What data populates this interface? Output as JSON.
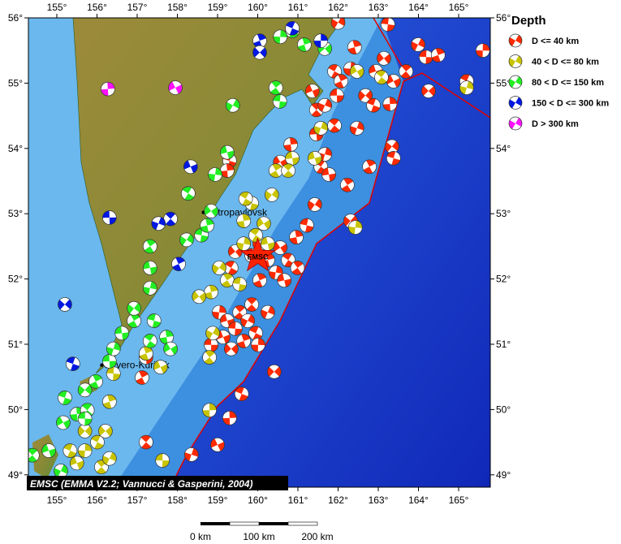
{
  "map": {
    "lon_range": [
      154.3,
      165.8
    ],
    "lat_range": [
      48.8,
      56.0
    ],
    "lon_ticks": [
      155,
      156,
      157,
      158,
      159,
      160,
      161,
      162,
      163,
      164,
      165
    ],
    "lat_ticks": [
      49,
      50,
      51,
      52,
      53,
      54,
      55,
      56
    ],
    "degree_symbol": "°",
    "cities": [
      {
        "name": "Petropavlovsk",
        "lon": 158.65,
        "lat": 53.02
      },
      {
        "name": "Severo-Kuril'sk",
        "lon": 156.12,
        "lat": 50.68
      }
    ],
    "epicenter": {
      "label": "EMSC",
      "lon": 160.0,
      "lat": 52.35,
      "color": "#ff2200"
    },
    "credit": "EMSC (EMMA V2.2; Vannucci & Gasperini, 2004)",
    "scale_bar": {
      "labels": [
        "0 km",
        "100 km",
        "200 km"
      ]
    },
    "plate_boundary_color": "#e00000"
  },
  "legend": {
    "title": "Depth",
    "items": [
      {
        "label": "D <= 40 km",
        "color": "#ff2a00"
      },
      {
        "label": "40 < D <= 80 km",
        "color": "#c8c400"
      },
      {
        "label": "80 < D <= 150 km",
        "color": "#22ee22"
      },
      {
        "label": "150 < D <= 300 km",
        "color": "#0018e0"
      },
      {
        "label": "D > 300 km",
        "color": "#ff10ff"
      }
    ]
  },
  "events": [
    [
      162.0,
      55.93,
      0
    ],
    [
      163.24,
      55.9,
      0
    ],
    [
      162.41,
      55.55,
      0
    ],
    [
      163.14,
      55.38,
      0
    ],
    [
      161.91,
      55.18,
      0
    ],
    [
      162.31,
      55.22,
      0
    ],
    [
      162.94,
      55.18,
      0
    ],
    [
      163.69,
      55.18,
      0
    ],
    [
      163.99,
      55.59,
      0
    ],
    [
      164.19,
      55.4,
      0
    ],
    [
      164.49,
      55.43,
      0
    ],
    [
      164.25,
      54.88,
      0
    ],
    [
      165.2,
      55.03,
      0
    ],
    [
      165.6,
      55.5,
      0
    ],
    [
      161.36,
      54.88,
      0
    ],
    [
      161.46,
      54.59,
      0
    ],
    [
      161.67,
      54.66,
      0
    ],
    [
      161.97,
      54.81,
      0
    ],
    [
      162.07,
      55.03,
      0
    ],
    [
      162.68,
      54.81,
      0
    ],
    [
      162.88,
      54.66,
      0
    ],
    [
      163.29,
      54.68,
      0
    ],
    [
      163.38,
      55.03,
      0
    ],
    [
      161.91,
      54.35,
      0
    ],
    [
      162.47,
      54.31,
      0
    ],
    [
      161.46,
      54.22,
      0
    ],
    [
      162.78,
      53.72,
      0
    ],
    [
      163.34,
      54.03,
      0
    ],
    [
      163.38,
      53.85,
      0
    ],
    [
      160.82,
      54.06,
      0
    ],
    [
      160.56,
      53.79,
      0
    ],
    [
      161.57,
      53.72,
      0
    ],
    [
      161.67,
      53.91,
      0
    ],
    [
      161.77,
      53.6,
      0
    ],
    [
      162.23,
      53.44,
      0
    ],
    [
      161.42,
      53.14,
      0
    ],
    [
      161.22,
      52.82,
      0
    ],
    [
      160.96,
      52.64,
      0
    ],
    [
      160.56,
      52.48,
      0
    ],
    [
      160.76,
      52.29,
      0
    ],
    [
      160.45,
      52.1,
      0
    ],
    [
      160.66,
      51.98,
      0
    ],
    [
      160.99,
      52.17,
      0
    ],
    [
      160.05,
      52.54,
      0
    ],
    [
      159.85,
      52.36,
      0
    ],
    [
      160.25,
      52.29,
      0
    ],
    [
      159.44,
      52.42,
      0
    ],
    [
      159.34,
      52.17,
      0
    ],
    [
      159.04,
      51.49,
      0
    ],
    [
      159.24,
      51.36,
      0
    ],
    [
      159.55,
      51.49,
      0
    ],
    [
      159.75,
      51.36,
      0
    ],
    [
      159.44,
      51.24,
      0
    ],
    [
      159.65,
      51.05,
      0
    ],
    [
      159.34,
      50.93,
      0
    ],
    [
      159.95,
      51.17,
      0
    ],
    [
      160.01,
      50.99,
      0
    ],
    [
      159.14,
      51.11,
      0
    ],
    [
      159.85,
      51.61,
      0
    ],
    [
      160.25,
      51.49,
      0
    ],
    [
      158.84,
      50.99,
      0
    ],
    [
      160.05,
      51.98,
      0
    ],
    [
      160.41,
      50.58,
      0
    ],
    [
      159.6,
      50.24,
      0
    ],
    [
      159.3,
      49.87,
      0
    ],
    [
      159.0,
      49.46,
      0
    ],
    [
      157.22,
      49.5,
      0
    ],
    [
      158.35,
      49.31,
      0
    ],
    [
      157.22,
      50.8,
      0
    ],
    [
      157.12,
      50.49,
      0
    ],
    [
      162.31,
      52.89,
      0
    ],
    [
      159.3,
      53.81,
      0
    ],
    [
      159.24,
      53.66,
      0
    ],
    [
      162.47,
      55.18,
      1
    ],
    [
      163.08,
      55.09,
      1
    ],
    [
      165.2,
      54.93,
      1
    ],
    [
      160.86,
      53.85,
      1
    ],
    [
      160.45,
      53.66,
      1
    ],
    [
      160.35,
      53.29,
      1
    ],
    [
      159.85,
      53.16,
      1
    ],
    [
      159.65,
      52.89,
      1
    ],
    [
      160.15,
      52.85,
      1
    ],
    [
      159.95,
      52.67,
      1
    ],
    [
      159.65,
      52.54,
      1
    ],
    [
      160.25,
      52.54,
      1
    ],
    [
      159.24,
      51.98,
      1
    ],
    [
      159.04,
      52.17,
      1
    ],
    [
      159.55,
      51.92,
      1
    ],
    [
      158.84,
      51.8,
      1
    ],
    [
      158.54,
      51.73,
      1
    ],
    [
      159.7,
      53.23,
      1
    ],
    [
      162.43,
      52.79,
      1
    ],
    [
      161.42,
      53.85,
      1
    ],
    [
      158.8,
      50.8,
      1
    ],
    [
      158.88,
      51.17,
      1
    ],
    [
      156.41,
      50.55,
      1
    ],
    [
      156.31,
      50.12,
      1
    ],
    [
      156.21,
      49.67,
      1
    ],
    [
      156.01,
      49.5,
      1
    ],
    [
      155.7,
      49.37,
      1
    ],
    [
      155.5,
      49.18,
      1
    ],
    [
      156.11,
      49.12,
      1
    ],
    [
      156.31,
      49.25,
      1
    ],
    [
      157.63,
      49.22,
      1
    ],
    [
      157.22,
      50.86,
      1
    ],
    [
      155.7,
      49.67,
      1
    ],
    [
      155.33,
      49.37,
      1
    ],
    [
      158.8,
      49.99,
      1
    ],
    [
      157.58,
      50.65,
      1
    ],
    [
      160.76,
      53.66,
      1
    ],
    [
      161.57,
      54.31,
      1
    ],
    [
      156.31,
      50.74,
      2
    ],
    [
      155.97,
      50.43,
      2
    ],
    [
      155.7,
      50.3,
      2
    ],
    [
      155.2,
      50.18,
      2
    ],
    [
      155.5,
      49.93,
      2
    ],
    [
      155.16,
      49.8,
      2
    ],
    [
      155.76,
      49.99,
      2
    ],
    [
      156.41,
      50.93,
      2
    ],
    [
      156.62,
      51.17,
      2
    ],
    [
      156.92,
      51.36,
      2
    ],
    [
      156.92,
      51.55,
      2
    ],
    [
      157.42,
      51.36,
      2
    ],
    [
      157.73,
      51.11,
      2
    ],
    [
      157.83,
      50.93,
      2
    ],
    [
      157.32,
      51.05,
      2
    ],
    [
      157.32,
      51.86,
      2
    ],
    [
      157.32,
      52.17,
      2
    ],
    [
      157.32,
      52.5,
      2
    ],
    [
      158.23,
      52.6,
      2
    ],
    [
      158.6,
      52.67,
      2
    ],
    [
      158.74,
      52.82,
      2
    ],
    [
      158.84,
      53.04,
      2
    ],
    [
      158.27,
      53.31,
      2
    ],
    [
      158.94,
      53.6,
      2
    ],
    [
      159.24,
      53.94,
      2
    ],
    [
      160.45,
      54.93,
      2
    ],
    [
      159.38,
      54.66,
      2
    ],
    [
      160.55,
      54.72,
      2
    ],
    [
      161.16,
      55.59,
      2
    ],
    [
      161.67,
      55.53,
      2
    ],
    [
      160.86,
      55.8,
      2
    ],
    [
      160.56,
      55.71,
      2
    ],
    [
      154.8,
      49.37,
      2
    ],
    [
      154.39,
      49.3,
      2
    ],
    [
      155.1,
      49.06,
      2
    ],
    [
      155.7,
      49.86,
      2
    ],
    [
      160.05,
      55.65,
      3
    ],
    [
      160.05,
      55.47,
      3
    ],
    [
      160.86,
      55.84,
      3
    ],
    [
      161.57,
      55.65,
      3
    ],
    [
      158.33,
      53.72,
      3
    ],
    [
      157.83,
      52.92,
      3
    ],
    [
      157.53,
      52.85,
      3
    ],
    [
      156.31,
      52.94,
      3
    ],
    [
      158.03,
      52.23,
      3
    ],
    [
      155.2,
      51.61,
      3
    ],
    [
      155.4,
      50.7,
      3
    ],
    [
      156.27,
      54.91,
      4
    ],
    [
      157.95,
      54.93,
      4
    ]
  ]
}
